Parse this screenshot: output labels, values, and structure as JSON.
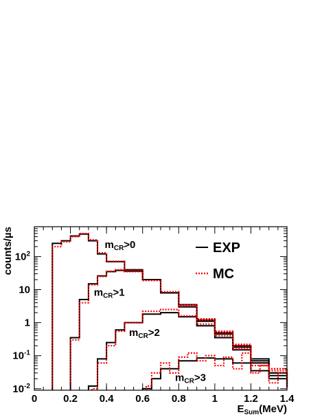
{
  "chart_data": {
    "type": "line",
    "step": true,
    "xlabel": {
      "main": "E",
      "sub": "Sum",
      "unit": "(MeV)"
    },
    "ylabel": "counts/µs",
    "xlim": [
      0,
      1.4
    ],
    "ylim": [
      0.009,
      800
    ],
    "yscale": "log",
    "x_ticks": [
      "0",
      "0.2",
      "0.4",
      "0.6",
      "0.8",
      "1",
      "1.2",
      "1.4"
    ],
    "y_ticks": [
      {
        "value": 0.01,
        "base": "10",
        "exp": "-2"
      },
      {
        "value": 0.1,
        "base": "10",
        "exp": "-1"
      },
      {
        "value": 1,
        "base": "1",
        "exp": ""
      },
      {
        "value": 10,
        "base": "10",
        "exp": ""
      },
      {
        "value": 100,
        "base": "10",
        "exp": "2"
      }
    ],
    "legend": {
      "position": "top-right",
      "entries": [
        {
          "label": "EXP",
          "color": "#000000",
          "style": "solid"
        },
        {
          "label": "MC",
          "color": "#ff0000",
          "style": "dotted"
        }
      ]
    },
    "annotations": [
      {
        "main": "m",
        "sub": "CR",
        "rest": ">0",
        "x": 0.39,
        "y": 180
      },
      {
        "main": "m",
        "sub": "CR",
        "rest": ">1",
        "x": 0.33,
        "y": 6.5
      },
      {
        "main": "m",
        "sub": "CR",
        "rest": ">2",
        "x": 0.525,
        "y": 0.4
      },
      {
        "main": "m",
        "sub": "CR",
        "rest": ">3",
        "x": 0.78,
        "y": 0.017
      }
    ],
    "series": [
      {
        "group": "mCR>0",
        "source": "EXP",
        "x": [
          0.1,
          0.15,
          0.2,
          0.25,
          0.3,
          0.35,
          0.4,
          0.5,
          0.6,
          0.7,
          0.8,
          0.9,
          1.0,
          1.1,
          1.2,
          1.3,
          1.4
        ],
        "y": [
          250,
          300,
          420,
          480,
          300,
          120,
          70,
          40,
          20,
          8,
          3.5,
          1.2,
          0.5,
          0.2,
          0.08,
          0.03,
          0.015
        ]
      },
      {
        "group": "mCR>0",
        "source": "MC",
        "x": [
          0.1,
          0.15,
          0.2,
          0.25,
          0.3,
          0.35,
          0.4,
          0.5,
          0.6,
          0.7,
          0.8,
          0.9,
          1.0,
          1.1,
          1.2,
          1.3,
          1.4
        ],
        "y": [
          200,
          280,
          400,
          500,
          320,
          130,
          72,
          38,
          19,
          8.5,
          3.4,
          1.3,
          0.55,
          0.22,
          0.06,
          0.04,
          0.01
        ]
      },
      {
        "group": "mCR>1",
        "source": "EXP",
        "x": [
          0.2,
          0.25,
          0.3,
          0.35,
          0.4,
          0.45,
          0.5,
          0.6,
          0.7,
          0.8,
          0.9,
          1.0,
          1.1,
          1.2,
          1.3,
          1.4
        ],
        "y": [
          0.35,
          5,
          15,
          26,
          35,
          38,
          36,
          20,
          8,
          3,
          1.1,
          0.45,
          0.18,
          0.07,
          0.03,
          0.014
        ]
      },
      {
        "group": "mCR>1",
        "source": "MC",
        "x": [
          0.2,
          0.25,
          0.3,
          0.35,
          0.4,
          0.45,
          0.5,
          0.6,
          0.7,
          0.8,
          0.9,
          1.0,
          1.1,
          1.2,
          1.3,
          1.4
        ],
        "y": [
          0.3,
          4,
          14,
          25,
          36,
          40,
          35,
          19,
          8.5,
          3.2,
          1.2,
          0.5,
          0.2,
          0.06,
          0.04,
          0.01
        ]
      },
      {
        "group": "mCR>2",
        "source": "EXP",
        "x": [
          0.3,
          0.35,
          0.4,
          0.45,
          0.5,
          0.6,
          0.7,
          0.8,
          0.9,
          1.0,
          1.1,
          1.2,
          1.3,
          1.4
        ],
        "y": [
          0.012,
          0.08,
          0.25,
          0.6,
          1.0,
          1.8,
          2.0,
          1.5,
          0.8,
          0.35,
          0.15,
          0.06,
          0.025,
          0.012
        ]
      },
      {
        "group": "mCR>2",
        "source": "MC",
        "x": [
          0.32,
          0.35,
          0.4,
          0.45,
          0.5,
          0.6,
          0.7,
          0.8,
          0.9,
          1.0,
          1.1,
          1.2,
          1.3,
          1.4
        ],
        "y": [
          0.01,
          0.06,
          0.2,
          0.55,
          1.0,
          2.2,
          2.5,
          1.6,
          0.9,
          0.4,
          0.16,
          0.05,
          0.035,
          0.01
        ]
      },
      {
        "group": "mCR>3",
        "source": "EXP",
        "x": [
          0.6,
          0.65,
          0.7,
          0.8,
          0.9,
          1.0,
          1.1,
          1.2,
          1.3,
          1.4
        ],
        "y": [
          0.01,
          0.02,
          0.04,
          0.07,
          0.085,
          0.08,
          0.06,
          0.035,
          0.02,
          0.012
        ]
      },
      {
        "group": "mCR>3",
        "source": "MC",
        "x": [
          0.62,
          0.65,
          0.7,
          0.75,
          0.8,
          0.85,
          0.9,
          0.95,
          1.0,
          1.05,
          1.1,
          1.15,
          1.2,
          1.25,
          1.3,
          1.35,
          1.4
        ],
        "y": [
          0.012,
          0.03,
          0.06,
          0.03,
          0.09,
          0.12,
          0.07,
          0.1,
          0.05,
          0.09,
          0.04,
          0.12,
          0.03,
          0.05,
          0.015,
          0.03,
          0.01
        ]
      }
    ]
  }
}
